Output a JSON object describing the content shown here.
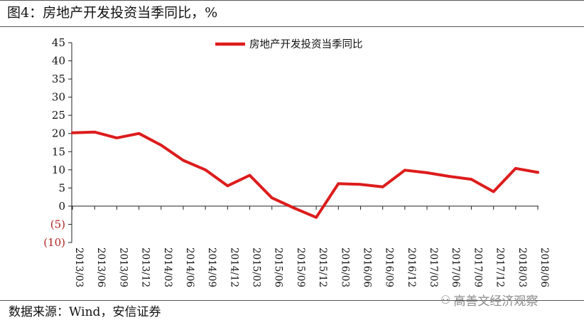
{
  "header": {
    "title": "图4：房地产开发投资当季同比，%"
  },
  "footer": {
    "source": "数据来源：Wind，安信证券",
    "watermark": "高善文经济观察"
  },
  "colors": {
    "series": "#dd1c1c",
    "negative_ticks": "#b22222"
  },
  "chart_data": {
    "type": "line",
    "title": "图4：房地产开发投资当季同比，%",
    "xlabel": "",
    "ylabel": "",
    "ylim": [
      -10,
      45
    ],
    "yticks": [
      45,
      40,
      35,
      30,
      25,
      20,
      15,
      10,
      5,
      0,
      -5,
      -10
    ],
    "ytick_labels": [
      "45",
      "40",
      "35",
      "30",
      "25",
      "20",
      "15",
      "10",
      "5",
      "0",
      "(5)",
      "(10)"
    ],
    "grid": false,
    "legend_position": "top-center",
    "categories": [
      "2013/03",
      "2013/06",
      "2013/09",
      "2013/12",
      "2014/03",
      "2014/06",
      "2014/09",
      "2014/12",
      "2015/03",
      "2015/06",
      "2015/09",
      "2015/12",
      "2016/03",
      "2016/06",
      "2016/09",
      "2016/12",
      "2017/03",
      "2017/06",
      "2017/09",
      "2017/12",
      "2018/03",
      "2018/06"
    ],
    "series": [
      {
        "name": "房地产开发投资当季同比",
        "values": [
          20.2,
          20.4,
          18.8,
          20.0,
          16.8,
          12.6,
          10.0,
          5.6,
          8.5,
          2.3,
          -0.5,
          -3.1,
          6.2,
          6.0,
          5.3,
          9.9,
          9.2,
          8.2,
          7.4,
          4.0,
          10.4,
          9.3
        ]
      }
    ]
  }
}
